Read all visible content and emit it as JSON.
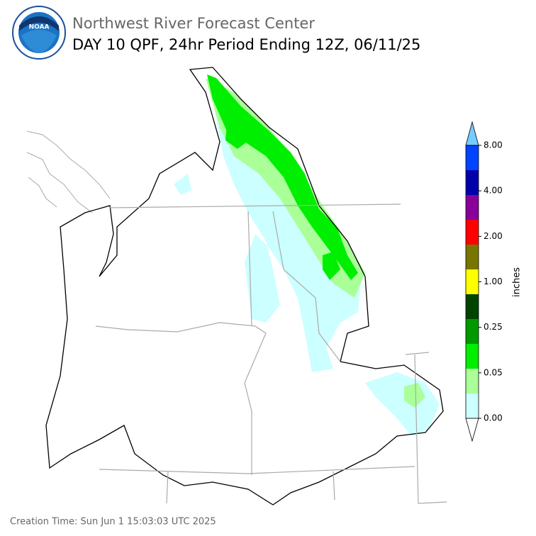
{
  "header": {
    "org": "Northwest River Forecast Center",
    "title": "DAY 10 QPF, 24hr Period Ending 12Z, 06/11/25",
    "logo": "NOAA"
  },
  "colorbar": {
    "label": "inches",
    "colors": [
      "#ffffff",
      "#ccffff",
      "#aaff99",
      "#00ee00",
      "#009900",
      "#004400",
      "#ffff00",
      "#777700",
      "#ff0000",
      "#880099",
      "#0000aa",
      "#0044ff",
      "#77ccff"
    ],
    "ticks": [
      {
        "value": 0,
        "label": "0.00"
      },
      {
        "value": 0.05,
        "label": "0.05"
      },
      {
        "value": 0.25,
        "label": "0.25"
      },
      {
        "value": 1,
        "label": "1.00"
      },
      {
        "value": 2,
        "label": "2.00"
      },
      {
        "value": 4,
        "label": "4.00"
      },
      {
        "value": 8,
        "label": "8.00"
      }
    ]
  },
  "footer": {
    "creation_time": "Creation Time: Sun Jun 1 15:03:03 UTC 2025"
  }
}
